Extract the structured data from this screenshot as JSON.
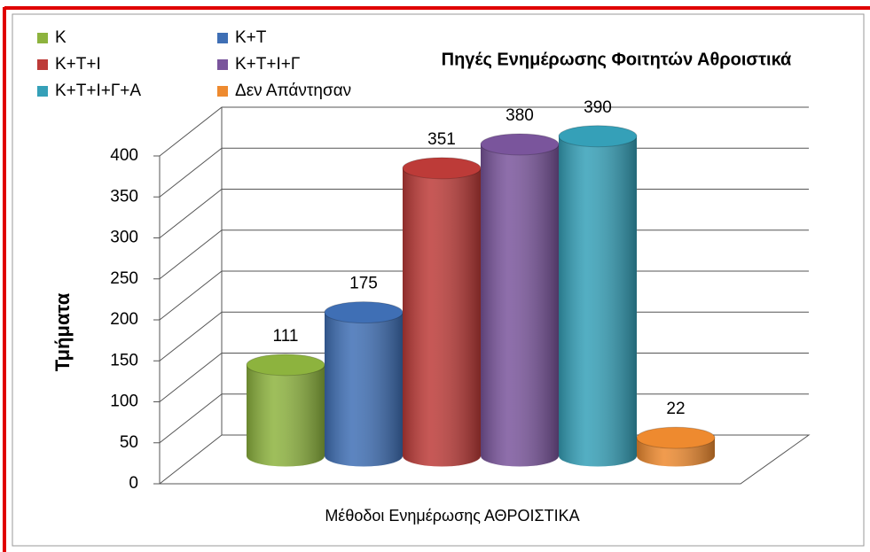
{
  "chart_data": {
    "type": "bar3d",
    "title": "Πηγές Ενημέρωσης Φοιτητών Αθροιστικά",
    "x_label": "Μέθοδοι Ενημέρωσης ΑΘΡΟΙΣΤΙΚΑ",
    "y_label": "Τμήματα",
    "series": [
      {
        "name": "Κ",
        "color": "#8db33e",
        "values": [
          111
        ]
      },
      {
        "name": "Κ+Τ",
        "color": "#3f6fb5",
        "values": [
          175
        ]
      },
      {
        "name": "Κ+Τ+Ι",
        "color": "#bd3b38",
        "values": [
          351
        ]
      },
      {
        "name": "Κ+Τ+Ι+Γ",
        "color": "#7a559c",
        "values": [
          380
        ]
      },
      {
        "name": "Κ+Τ+Ι+Γ+Α",
        "color": "#35a0b8",
        "values": [
          390
        ]
      },
      {
        "name": "Δεν Απάντησαν",
        "color": "#ee8a2f",
        "values": [
          22
        ]
      }
    ],
    "ylim": [
      0,
      400
    ],
    "yticks": [
      0,
      50,
      100,
      150,
      200,
      250,
      300,
      350,
      400
    ],
    "grid": true
  }
}
